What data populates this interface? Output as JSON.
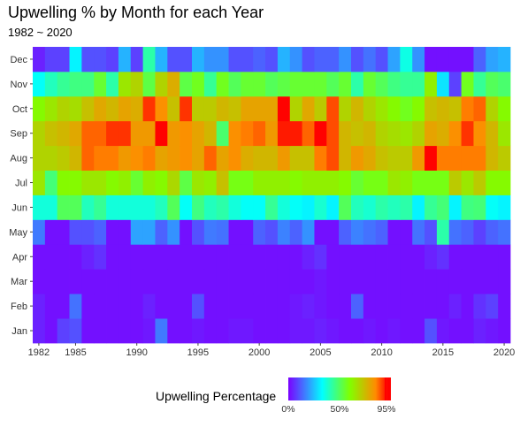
{
  "chart_data": {
    "type": "heatmap",
    "title": "Upwelling % by Month for each Year",
    "subtitle": "1982 ~ 2020",
    "xlabel": "",
    "ylabel": "",
    "x": [
      1982,
      1983,
      1984,
      1985,
      1986,
      1987,
      1988,
      1989,
      1990,
      1991,
      1992,
      1993,
      1994,
      1995,
      1996,
      1997,
      1998,
      1999,
      2000,
      2001,
      2002,
      2003,
      2004,
      2005,
      2006,
      2007,
      2008,
      2009,
      2010,
      2011,
      2012,
      2013,
      2014,
      2015,
      2016,
      2017,
      2018,
      2019,
      2020
    ],
    "x_tick_labels": [
      "1982",
      "1985",
      "1990",
      "1995",
      "2000",
      "2005",
      "2010",
      "2015",
      "2020"
    ],
    "y": [
      "Jan",
      "Feb",
      "Mar",
      "Apr",
      "May",
      "Jun",
      "Jul",
      "Aug",
      "Sep",
      "Oct",
      "Nov",
      "Dec"
    ],
    "values": [
      [
        4,
        2,
        8,
        10,
        2,
        2,
        2,
        2,
        2,
        3,
        15,
        2,
        2,
        3,
        2,
        2,
        3,
        3,
        2,
        2,
        2,
        3,
        3,
        4,
        3,
        2,
        2,
        3,
        2,
        3,
        2,
        2,
        10,
        3,
        2,
        2,
        4,
        3,
        2
      ],
      [
        4,
        2,
        2,
        14,
        2,
        2,
        2,
        2,
        2,
        4,
        2,
        2,
        2,
        10,
        2,
        2,
        2,
        2,
        2,
        2,
        2,
        3,
        4,
        3,
        2,
        2,
        12,
        2,
        2,
        2,
        2,
        2,
        2,
        2,
        4,
        2,
        6,
        8,
        2
      ],
      [
        2,
        2,
        2,
        2,
        2,
        2,
        2,
        2,
        2,
        2,
        2,
        2,
        2,
        2,
        2,
        2,
        2,
        2,
        2,
        2,
        2,
        2,
        2,
        3,
        2,
        2,
        2,
        2,
        2,
        2,
        2,
        2,
        2,
        2,
        2,
        2,
        2,
        2,
        2
      ],
      [
        2,
        2,
        2,
        2,
        4,
        6,
        2,
        2,
        2,
        2,
        2,
        2,
        2,
        2,
        2,
        2,
        2,
        2,
        2,
        2,
        2,
        2,
        4,
        6,
        2,
        2,
        2,
        2,
        2,
        2,
        2,
        2,
        4,
        6,
        2,
        2,
        2,
        2,
        2
      ],
      [
        15,
        2,
        2,
        10,
        10,
        12,
        2,
        2,
        20,
        20,
        12,
        18,
        2,
        10,
        15,
        14,
        2,
        2,
        12,
        10,
        16,
        12,
        18,
        2,
        2,
        12,
        16,
        14,
        12,
        2,
        2,
        14,
        10,
        40,
        14,
        12,
        8,
        12,
        14
      ],
      [
        35,
        35,
        48,
        48,
        38,
        42,
        35,
        35,
        35,
        35,
        38,
        48,
        32,
        44,
        38,
        40,
        35,
        32,
        32,
        42,
        35,
        32,
        30,
        36,
        30,
        48,
        38,
        36,
        40,
        38,
        40,
        30,
        42,
        45,
        30,
        44,
        45,
        32,
        30
      ],
      [
        62,
        45,
        58,
        58,
        62,
        62,
        58,
        60,
        52,
        60,
        58,
        65,
        50,
        62,
        60,
        70,
        55,
        55,
        60,
        60,
        60,
        58,
        60,
        60,
        60,
        58,
        52,
        55,
        55,
        62,
        60,
        55,
        55,
        55,
        68,
        62,
        68,
        58,
        58
      ],
      [
        66,
        66,
        68,
        72,
        84,
        82,
        82,
        78,
        80,
        82,
        76,
        78,
        80,
        76,
        84,
        76,
        80,
        74,
        72,
        72,
        78,
        70,
        70,
        82,
        86,
        72,
        78,
        75,
        70,
        68,
        68,
        78,
        92,
        82,
        82,
        82,
        82,
        72,
        68
      ],
      [
        66,
        70,
        72,
        75,
        84,
        84,
        88,
        88,
        78,
        78,
        92,
        78,
        80,
        76,
        72,
        46,
        80,
        82,
        84,
        78,
        90,
        90,
        84,
        92,
        86,
        72,
        70,
        72,
        66,
        64,
        62,
        66,
        76,
        74,
        80,
        88,
        80,
        72,
        62
      ],
      [
        58,
        62,
        66,
        64,
        70,
        75,
        72,
        76,
        74,
        88,
        80,
        70,
        88,
        68,
        68,
        72,
        70,
        76,
        76,
        76,
        92,
        66,
        75,
        68,
        86,
        66,
        72,
        66,
        62,
        58,
        54,
        58,
        70,
        72,
        70,
        82,
        84,
        66,
        58
      ],
      [
        32,
        38,
        42,
        44,
        44,
        52,
        40,
        62,
        66,
        50,
        66,
        74,
        50,
        54,
        42,
        54,
        48,
        52,
        52,
        48,
        50,
        52,
        52,
        52,
        48,
        52,
        40,
        52,
        48,
        44,
        42,
        42,
        60,
        28,
        8,
        54,
        42,
        48,
        46
      ],
      [
        4,
        8,
        8,
        30,
        10,
        10,
        8,
        22,
        8,
        40,
        22,
        10,
        10,
        22,
        18,
        18,
        10,
        10,
        12,
        10,
        22,
        18,
        10,
        12,
        12,
        18,
        10,
        14,
        10,
        20,
        34,
        18,
        2,
        2,
        2,
        2,
        12,
        20,
        22
      ]
    ],
    "colorscale": [
      "#7b00ff",
      "#00ffff",
      "#80ff00",
      "#ff8c00",
      "#ff0000"
    ],
    "legend": {
      "title": "Upwelling Percentage",
      "tick_labels": [
        "0%",
        "50%",
        "95%"
      ],
      "range": [
        0,
        95
      ],
      "placement": "bottom"
    },
    "grid": false
  }
}
